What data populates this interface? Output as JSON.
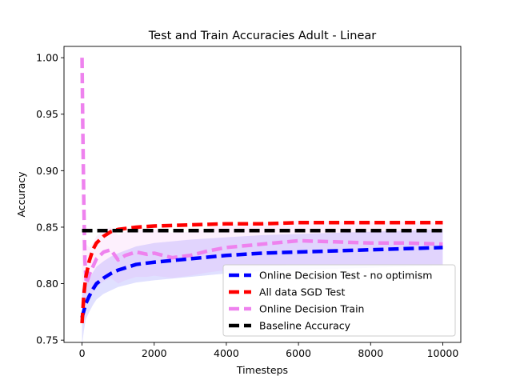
{
  "chart_data": {
    "type": "line",
    "title": "Test and Train Accuracies Adult - Linear",
    "xlabel": "Timesteps",
    "ylabel": "Accuracy",
    "xlim": [
      -500,
      10500
    ],
    "ylim": [
      0.748,
      1.01
    ],
    "xticks": [
      0,
      2000,
      4000,
      6000,
      8000,
      10000
    ],
    "yticks": [
      0.75,
      0.8,
      0.85,
      0.9,
      0.95,
      1.0
    ],
    "xtick_labels": [
      "0",
      "2000",
      "4000",
      "6000",
      "8000",
      "10000"
    ],
    "ytick_labels": [
      "0.75",
      "0.80",
      "0.85",
      "0.90",
      "0.95",
      "1.00"
    ],
    "grid": false,
    "legend_position": "lower-right",
    "series": [
      {
        "name": "Online Decision Test - no optimism",
        "color": "#0000ff",
        "x": [
          0,
          50,
          100,
          200,
          300,
          400,
          600,
          800,
          1000,
          1500,
          2000,
          3000,
          4000,
          5000,
          6000,
          7000,
          8000,
          9000,
          10000
        ],
        "y": [
          0.77,
          0.776,
          0.782,
          0.789,
          0.795,
          0.8,
          0.805,
          0.809,
          0.812,
          0.817,
          0.819,
          0.822,
          0.825,
          0.827,
          0.828,
          0.829,
          0.83,
          0.831,
          0.832
        ],
        "band_lower": [
          0.745,
          0.758,
          0.768,
          0.775,
          0.781,
          0.786,
          0.791,
          0.794,
          0.797,
          0.801,
          0.803,
          0.806,
          0.809,
          0.811,
          0.812,
          0.813,
          0.814,
          0.815,
          0.816
        ],
        "band_upper": [
          0.795,
          0.796,
          0.8,
          0.805,
          0.81,
          0.815,
          0.82,
          0.824,
          0.827,
          0.833,
          0.836,
          0.839,
          0.841,
          0.843,
          0.844,
          0.845,
          0.846,
          0.847,
          0.848
        ]
      },
      {
        "name": "All data SGD Test",
        "color": "#ff0000",
        "x": [
          0,
          50,
          100,
          200,
          300,
          400,
          600,
          800,
          1000,
          1500,
          2000,
          3000,
          4000,
          5000,
          6000,
          7000,
          8000,
          9000,
          10000
        ],
        "y": [
          0.765,
          0.79,
          0.805,
          0.82,
          0.83,
          0.836,
          0.842,
          0.846,
          0.848,
          0.85,
          0.851,
          0.852,
          0.853,
          0.853,
          0.854,
          0.854,
          0.854,
          0.854,
          0.854
        ]
      },
      {
        "name": "Online Decision Train",
        "color": "#ee82ee",
        "x": [
          0,
          20,
          50,
          80,
          120,
          200,
          300,
          400,
          600,
          800,
          1000,
          1200,
          1500,
          1800,
          2000,
          2500,
          3000,
          3500,
          4000,
          5000,
          6000,
          7000,
          8000,
          9000,
          10000
        ],
        "y": [
          1.0,
          0.94,
          0.87,
          0.82,
          0.8,
          0.808,
          0.815,
          0.822,
          0.828,
          0.83,
          0.821,
          0.825,
          0.828,
          0.826,
          0.827,
          0.823,
          0.825,
          0.829,
          0.832,
          0.835,
          0.838,
          0.837,
          0.836,
          0.836,
          0.835
        ],
        "band_lower": [
          0.78,
          0.78,
          0.78,
          0.78,
          0.781,
          0.786,
          0.792,
          0.797,
          0.802,
          0.805,
          0.8,
          0.803,
          0.806,
          0.806,
          0.807,
          0.805,
          0.807,
          0.81,
          0.812,
          0.815,
          0.817,
          0.817,
          0.817,
          0.817,
          0.817
        ],
        "band_upper": [
          0.84,
          0.84,
          0.84,
          0.84,
          0.835,
          0.832,
          0.836,
          0.842,
          0.848,
          0.85,
          0.843,
          0.846,
          0.849,
          0.847,
          0.848,
          0.845,
          0.846,
          0.849,
          0.852,
          0.854,
          0.856,
          0.855,
          0.855,
          0.855,
          0.854
        ]
      },
      {
        "name": "Baseline Accuracy",
        "color": "#000000",
        "x": [
          0,
          10000
        ],
        "y": [
          0.847,
          0.847
        ]
      }
    ]
  }
}
